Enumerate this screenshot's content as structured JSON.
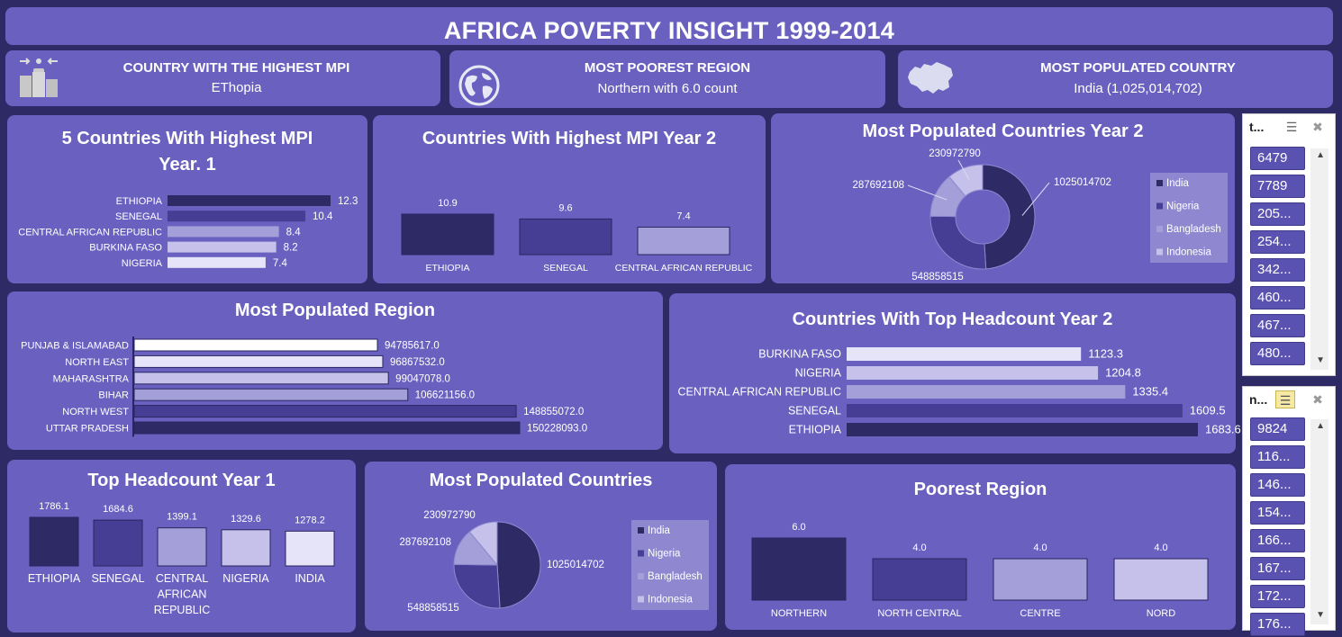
{
  "header": {
    "title": "AFRICA POVERTY INSIGHT 1999-2014"
  },
  "kpis": [
    {
      "heading": "COUNTRY WITH THE HIGHEST MPI",
      "value": "EThopia",
      "icon": "podium-icon"
    },
    {
      "heading": "MOST POOREST REGION",
      "value": "Northern with 6.0 count",
      "icon": "globe-icon"
    },
    {
      "heading": "MOST POPULATED COUNTRY",
      "value": "India (1,025,014,702)",
      "icon": "map-icon"
    }
  ],
  "colors": {
    "bg": "#2d2a66",
    "panel": "#6a60c0",
    "c1": "#2d2a66",
    "c2": "#453e94",
    "c3": "#a49fd8",
    "c4": "#c5c1ea",
    "c5": "#e6e4f8"
  },
  "chart_data": [
    {
      "id": "mpi-year1",
      "type": "bar",
      "orientation": "horizontal",
      "title": "5 Countries With Highest MPI Year. 1",
      "categories": [
        "ETHIOPIA",
        "SENEGAL",
        "CENTRAL AFRICAN REPUBLIC",
        "BURKINA FASO",
        "NIGERIA"
      ],
      "values": [
        12.3,
        10.4,
        8.4,
        8.2,
        7.4
      ],
      "labels": [
        "12.3",
        "10.4",
        "8.4",
        "8.2",
        "7.4"
      ]
    },
    {
      "id": "mpi-year2",
      "type": "bar",
      "orientation": "vertical",
      "title": "Countries With Highest MPI Year 2",
      "categories": [
        "ETHIOPIA",
        "SENEGAL",
        "CENTRAL AFRICAN REPUBLIC"
      ],
      "values": [
        10.9,
        9.6,
        7.4
      ],
      "labels": [
        "10.9",
        "9.6",
        "7.4"
      ]
    },
    {
      "id": "pop-year2",
      "type": "pie",
      "variant": "donut",
      "title": "Most Populated Countries Year 2",
      "categories": [
        "India",
        "Nigeria",
        "Bangladesh",
        "Indonesia"
      ],
      "values": [
        1025014702,
        548858515,
        287692108,
        230972790
      ],
      "labels": [
        "1025014702",
        "548858515",
        "287692108",
        "230972790"
      ],
      "legend": "right"
    },
    {
      "id": "pop-region",
      "type": "bar",
      "orientation": "horizontal",
      "title": "Most Populated Region",
      "categories": [
        "PUNJAB & ISLAMABAD",
        "NORTH EAST",
        "MAHARASHTRA",
        "BIHAR",
        "NORTH WEST",
        "UTTAR PRADESH"
      ],
      "values": [
        94785617,
        96867532,
        99047078,
        106621156,
        148855072,
        150228093
      ],
      "labels": [
        "94785617.0",
        "96867532.0",
        "99047078.0",
        "106621156.0",
        "148855072.0",
        "150228093.0"
      ]
    },
    {
      "id": "headcount-year2",
      "type": "bar",
      "orientation": "horizontal",
      "title": "Countries With Top Headcount Year 2",
      "categories": [
        "BURKINA FASO",
        "NIGERIA",
        "CENTRAL AFRICAN REPUBLIC",
        "SENEGAL",
        "ETHIOPIA"
      ],
      "values": [
        1123.3,
        1204.8,
        1335.4,
        1609.5,
        1683.6
      ],
      "labels": [
        "1123.3",
        "1204.8",
        "1335.4",
        "1609.5",
        "1683.6"
      ]
    },
    {
      "id": "headcount-year1",
      "type": "bar",
      "orientation": "vertical",
      "title": "Top Headcount Year 1",
      "categories": [
        "ETHIOPIA",
        "SENEGAL",
        "CENTRAL AFRICAN REPUBLIC",
        "NIGERIA",
        "INDIA"
      ],
      "category_lines": [
        [
          "ETHIOPIA"
        ],
        [
          "SENEGAL"
        ],
        [
          "CENTRAL",
          "AFRICAN",
          "REPUBLIC"
        ],
        [
          "NIGERIA"
        ],
        [
          "INDIA"
        ]
      ],
      "values": [
        1786.1,
        1684.6,
        1399.1,
        1329.6,
        1278.2
      ],
      "labels": [
        "1786.1",
        "1684.6",
        "1399.1",
        "1329.6",
        "1278.2"
      ]
    },
    {
      "id": "pop-countries",
      "type": "pie",
      "title": "Most Populated Countries",
      "categories": [
        "India",
        "Nigeria",
        "Bangladesh",
        "Indonesia"
      ],
      "values": [
        1025014702,
        548858515,
        287692108,
        230972790
      ],
      "labels": [
        "1025014702",
        "548858515",
        "287692108",
        "230972790"
      ],
      "legend": "right"
    },
    {
      "id": "poorest-region",
      "type": "bar",
      "orientation": "vertical",
      "title": "Poorest Region",
      "categories": [
        "NORTHERN",
        "NORTH CENTRAL",
        "CENTRE",
        "NORD"
      ],
      "values": [
        6.0,
        4.0,
        4.0,
        4.0
      ],
      "labels": [
        "6.0",
        "4.0",
        "4.0",
        "4.0"
      ]
    }
  ],
  "slicers": [
    {
      "header": "t...",
      "items": [
        "6479",
        "7789",
        "205...",
        "254...",
        "342...",
        "460...",
        "467...",
        "480..."
      ]
    },
    {
      "header": "n...",
      "items": [
        "9824",
        "116...",
        "146...",
        "154...",
        "166...",
        "167...",
        "172...",
        "176..."
      ]
    }
  ]
}
